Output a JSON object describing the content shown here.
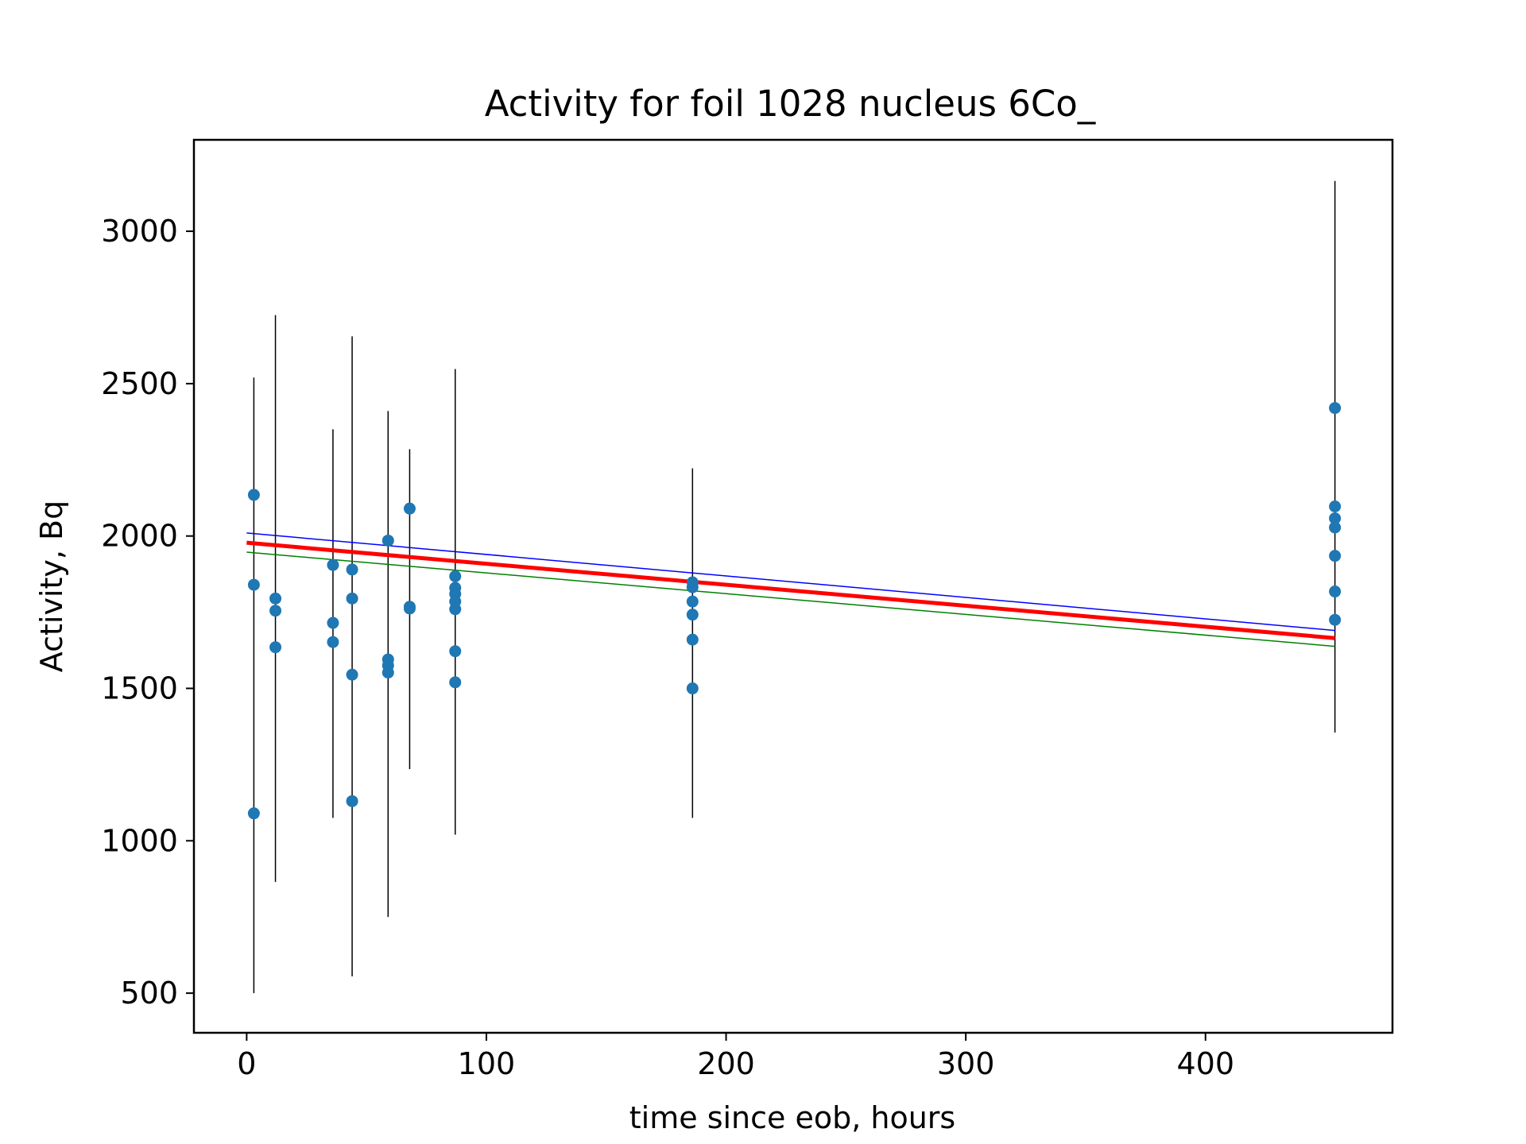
{
  "chart_data": {
    "type": "scatter",
    "title": "Activity for foil 1028 nucleus 6Co_",
    "xlabel": "time since eob, hours",
    "ylabel": "Activity, Bq",
    "xlim": [
      -22,
      478
    ],
    "ylim": [
      370,
      3300
    ],
    "xticks": [
      0,
      100,
      200,
      300,
      400
    ],
    "yticks": [
      500,
      1000,
      1500,
      2000,
      2500,
      3000
    ],
    "grid": false,
    "points": [
      {
        "x": 3,
        "y": 2135,
        "err_low": 500,
        "err_high": 2520
      },
      {
        "x": 3,
        "y": 1840
      },
      {
        "x": 3,
        "y": 1090
      },
      {
        "x": 12,
        "y": 1795,
        "err_low": 865,
        "err_high": 2725
      },
      {
        "x": 12,
        "y": 1755
      },
      {
        "x": 12,
        "y": 1635
      },
      {
        "x": 36,
        "y": 1905,
        "err_low": 1075,
        "err_high": 2350
      },
      {
        "x": 36,
        "y": 1715
      },
      {
        "x": 36,
        "y": 1652
      },
      {
        "x": 44,
        "y": 1890,
        "err_low": 555,
        "err_high": 2655
      },
      {
        "x": 44,
        "y": 1795
      },
      {
        "x": 44,
        "y": 1545
      },
      {
        "x": 44,
        "y": 1130
      },
      {
        "x": 59,
        "y": 1985,
        "err_low": 750,
        "err_high": 2410
      },
      {
        "x": 59,
        "y": 1595
      },
      {
        "x": 59,
        "y": 1575
      },
      {
        "x": 59,
        "y": 1552
      },
      {
        "x": 68,
        "y": 2090,
        "err_low": 1235,
        "err_high": 2285
      },
      {
        "x": 68,
        "y": 1768
      },
      {
        "x": 68,
        "y": 1762
      },
      {
        "x": 87,
        "y": 1868,
        "err_low": 1020,
        "err_high": 2548
      },
      {
        "x": 87,
        "y": 1830
      },
      {
        "x": 87,
        "y": 1810
      },
      {
        "x": 87,
        "y": 1785
      },
      {
        "x": 87,
        "y": 1760
      },
      {
        "x": 87,
        "y": 1622
      },
      {
        "x": 87,
        "y": 1520
      },
      {
        "x": 186,
        "y": 1848,
        "err_low": 1075,
        "err_high": 2222
      },
      {
        "x": 186,
        "y": 1832
      },
      {
        "x": 186,
        "y": 1785
      },
      {
        "x": 186,
        "y": 1742
      },
      {
        "x": 186,
        "y": 1660
      },
      {
        "x": 186,
        "y": 1500
      },
      {
        "x": 454,
        "y": 2420,
        "err_low": 1355,
        "err_high": 3165
      },
      {
        "x": 454,
        "y": 2097
      },
      {
        "x": 454,
        "y": 2058
      },
      {
        "x": 454,
        "y": 2028
      },
      {
        "x": 454,
        "y": 1935
      },
      {
        "x": 454,
        "y": 1818
      },
      {
        "x": 454,
        "y": 1725
      }
    ],
    "lines": [
      {
        "color": "#0000ff",
        "width": "thin",
        "x": [
          0,
          454
        ],
        "y": [
          2010,
          1690
        ]
      },
      {
        "color": "#ff0000",
        "width": "thick",
        "x": [
          0,
          454
        ],
        "y": [
          1978,
          1665
        ]
      },
      {
        "color": "#008000",
        "width": "thin",
        "x": [
          0,
          454
        ],
        "y": [
          1947,
          1638
        ]
      }
    ],
    "colors": {
      "points": "#1f77b4",
      "errorbars": "#000000"
    }
  }
}
